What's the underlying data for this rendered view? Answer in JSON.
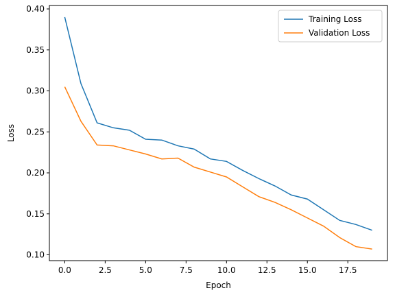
{
  "chart_data": {
    "type": "line",
    "xlabel": "Epoch",
    "ylabel": "Loss",
    "x": [
      0,
      1,
      2,
      3,
      4,
      5,
      6,
      7,
      8,
      9,
      10,
      11,
      12,
      13,
      14,
      15,
      16,
      17,
      18,
      19
    ],
    "series": [
      {
        "name": "Training Loss",
        "color": "#1f77b4",
        "values": [
          0.39,
          0.309,
          0.261,
          0.255,
          0.252,
          0.241,
          0.24,
          0.233,
          0.229,
          0.217,
          0.214,
          0.203,
          0.193,
          0.184,
          0.173,
          0.168,
          0.155,
          0.142,
          0.137,
          0.13
        ]
      },
      {
        "name": "Validation Loss",
        "color": "#ff7f0e",
        "values": [
          0.305,
          0.263,
          0.234,
          0.233,
          0.228,
          0.223,
          0.217,
          0.218,
          0.207,
          0.201,
          0.195,
          0.183,
          0.171,
          0.164,
          0.155,
          0.145,
          0.135,
          0.121,
          0.11,
          0.107
        ]
      }
    ],
    "xlim": [
      -0.95,
      19.95
    ],
    "xticks": [
      {
        "value": 0,
        "label": "0.0"
      },
      2.5,
      {
        "value": 5,
        "label": "5.0"
      },
      7.5,
      {
        "value": 10,
        "label": "10.0"
      },
      12.5,
      {
        "value": 15,
        "label": "15.0"
      },
      17.5
    ],
    "ylim": [
      0.0929,
      0.4042
    ],
    "yticks": [
      {
        "value": 0.1,
        "label": "0.10"
      },
      0.15,
      {
        "value": 0.2,
        "label": "0.20"
      },
      0.25,
      {
        "value": 0.3,
        "label": "0.30"
      },
      0.35,
      {
        "value": 0.4,
        "label": "0.40"
      }
    ],
    "legend": "upper right",
    "grid": false
  }
}
